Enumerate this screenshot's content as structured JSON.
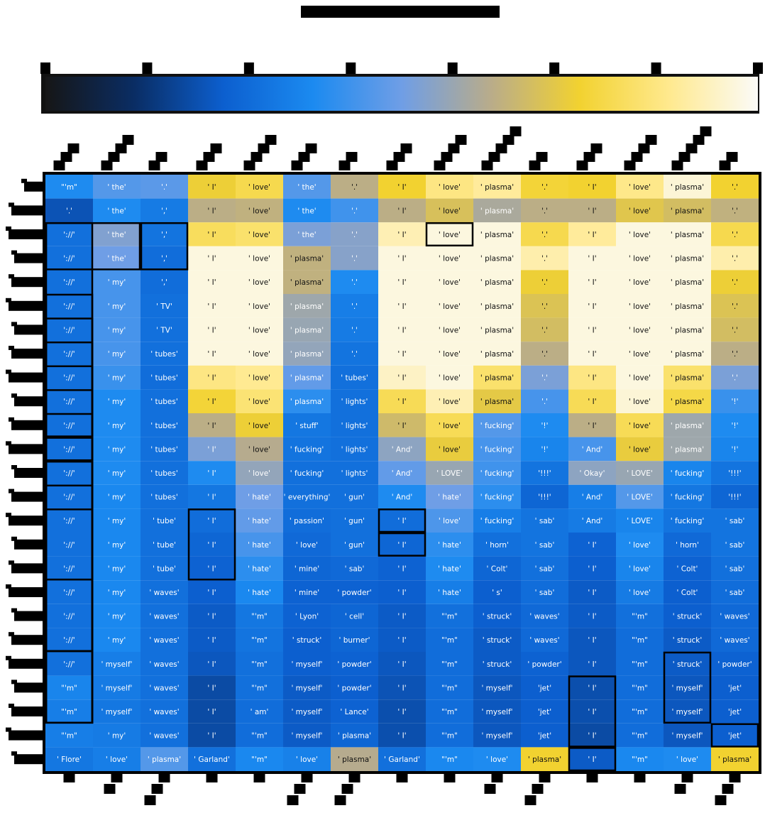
{
  "chart_data": {
    "type": "heatmap",
    "title": "",
    "xlabel": "",
    "ylabel": "",
    "n_rows": 25,
    "n_cols": 15,
    "colorbar": {
      "colors": [
        "#161616",
        "#0a2d64",
        "#0c5fcf",
        "#1b8af0",
        "#6f9ee6",
        "#b9ac8a",
        "#f2d230",
        "#ffe98e",
        "#fbfbf8"
      ],
      "n_ticks": 8,
      "tick_labels": []
    },
    "x_tick_labels": [],
    "y_tick_labels": [],
    "rows": [
      {
        "labels": [
          "\"'m\"",
          "' the'",
          "'.'",
          "' I'",
          "' love'",
          "' the'",
          "'.'",
          "' I'",
          "' love'",
          "' plasma'",
          "'.'",
          "' I'",
          "' love'",
          "' plasma'",
          "'.'"
        ],
        "values": [
          0.38,
          0.46,
          0.47,
          0.74,
          0.79,
          0.46,
          0.63,
          0.75,
          0.86,
          0.89,
          0.76,
          0.75,
          0.87,
          0.96,
          0.75
        ]
      },
      {
        "labels": [
          "'.'",
          "' the'",
          "','",
          "' I'",
          "' love'",
          "' the'",
          "'.'",
          "' I'",
          "' love'",
          "' plasma'",
          "'.'",
          "' I'",
          "' love'",
          "' plasma'",
          "'.'"
        ],
        "values": [
          0.22,
          0.38,
          0.33,
          0.63,
          0.64,
          0.38,
          0.43,
          0.63,
          0.69,
          0.6,
          0.63,
          0.63,
          0.71,
          0.68,
          0.64
        ]
      },
      {
        "labels": [
          "'://'",
          "' the'",
          "','",
          "' I'",
          "' love'",
          "' the'",
          "'.'",
          "' I'",
          "' love'",
          "' plasma'",
          "'.'",
          "' I'",
          "' love'",
          "' plasma'",
          "'.'"
        ],
        "values": [
          0.3,
          0.53,
          0.31,
          0.81,
          0.83,
          0.52,
          0.54,
          0.92,
          0.97,
          0.97,
          0.79,
          0.89,
          0.97,
          0.97,
          0.79
        ]
      },
      {
        "labels": [
          "'://'",
          "' the'",
          "','",
          "' I'",
          "' love'",
          "' plasma'",
          "'.'",
          "' I'",
          "' love'",
          "' plasma'",
          "'.'",
          "' I'",
          "' love'",
          "' plasma'",
          "'.'"
        ],
        "values": [
          0.3,
          0.5,
          0.29,
          0.97,
          0.97,
          0.64,
          0.54,
          0.97,
          0.97,
          0.97,
          0.91,
          0.97,
          0.97,
          0.97,
          0.91
        ]
      },
      {
        "labels": [
          "'://'",
          "' my'",
          "','",
          "' I'",
          "' love'",
          "' plasma'",
          "'.'",
          "' I'",
          "' love'",
          "' plasma'",
          "'.'",
          "' I'",
          "' love'",
          "' plasma'",
          "'.'"
        ],
        "values": [
          0.3,
          0.44,
          0.29,
          0.97,
          0.97,
          0.64,
          0.38,
          0.97,
          0.97,
          0.97,
          0.74,
          0.97,
          0.97,
          0.97,
          0.74
        ]
      },
      {
        "labels": [
          "'://'",
          "' my'",
          "' TV'",
          "' I'",
          "' love'",
          "' plasma'",
          "'.'",
          "' I'",
          "' love'",
          "' plasma'",
          "'.'",
          "' I'",
          "' love'",
          "' plasma'",
          "'.'"
        ],
        "values": [
          0.3,
          0.44,
          0.3,
          0.97,
          0.97,
          0.58,
          0.34,
          0.97,
          0.97,
          0.97,
          0.7,
          0.97,
          0.97,
          0.97,
          0.7
        ]
      },
      {
        "labels": [
          "'://'",
          "' my'",
          "' TV'",
          "' I'",
          "' love'",
          "' plasma'",
          "'.'",
          "' I'",
          "' love'",
          "' plasma'",
          "'.'",
          "' I'",
          "' love'",
          "' plasma'",
          "'.'"
        ],
        "values": [
          0.3,
          0.44,
          0.3,
          0.97,
          0.97,
          0.57,
          0.33,
          0.97,
          0.97,
          0.97,
          0.68,
          0.97,
          0.97,
          0.97,
          0.68
        ]
      },
      {
        "labels": [
          "'://'",
          "' my'",
          "' tubes'",
          "' I'",
          "' love'",
          "' plasma'",
          "'.'",
          "' I'",
          "' love'",
          "' plasma'",
          "'.'",
          "' I'",
          "' love'",
          "' plasma'",
          "'.'"
        ],
        "values": [
          0.3,
          0.44,
          0.3,
          0.97,
          0.97,
          0.56,
          0.31,
          0.97,
          0.97,
          0.97,
          0.63,
          0.97,
          0.97,
          0.97,
          0.63
        ]
      },
      {
        "labels": [
          "'://'",
          "' my'",
          "' tubes'",
          "' I'",
          "' love'",
          "' plasma'",
          "' tubes'",
          "' I'",
          "' love'",
          "' plasma'",
          "'.'",
          "' I'",
          "' love'",
          "' plasma'",
          "'.'"
        ],
        "values": [
          0.3,
          0.42,
          0.29,
          0.86,
          0.88,
          0.48,
          0.3,
          0.94,
          0.97,
          0.83,
          0.52,
          0.86,
          0.97,
          0.83,
          0.52
        ]
      },
      {
        "labels": [
          "'://'",
          "' my'",
          "' tubes'",
          "' I'",
          "' love'",
          "' plasma'",
          "' lights'",
          "' I'",
          "' love'",
          "' plasma'",
          "'.'",
          "' I'",
          "' love'",
          "' plasma'",
          "'!'"
        ],
        "values": [
          0.3,
          0.38,
          0.3,
          0.76,
          0.84,
          0.4,
          0.3,
          0.8,
          0.92,
          0.72,
          0.44,
          0.8,
          0.96,
          0.78,
          0.42
        ]
      },
      {
        "labels": [
          "'://'",
          "' my'",
          "' tubes'",
          "' I'",
          "' love'",
          "' stuff'",
          "' lights'",
          "' I'",
          "' love'",
          "' fucking'",
          "'!'",
          "' I'",
          "' love'",
          "' plasma'",
          "'!'"
        ],
        "values": [
          0.3,
          0.38,
          0.3,
          0.63,
          0.74,
          0.32,
          0.3,
          0.67,
          0.8,
          0.46,
          0.38,
          0.63,
          0.8,
          0.58,
          0.38
        ]
      },
      {
        "labels": [
          "'://'",
          "' my'",
          "' tubes'",
          "' I'",
          "' love'",
          "' fucking'",
          "' lights'",
          "' And'",
          "' love'",
          "' fucking'",
          "'!'",
          "' And'",
          "' love'",
          "' plasma'",
          "'!'"
        ],
        "values": [
          0.3,
          0.38,
          0.3,
          0.52,
          0.62,
          0.31,
          0.3,
          0.55,
          0.73,
          0.44,
          0.36,
          0.44,
          0.73,
          0.58,
          0.36
        ]
      },
      {
        "labels": [
          "'://'",
          "' my'",
          "' tubes'",
          "' I'",
          "' love'",
          "' fucking'",
          "' lights'",
          "' And'",
          "' LOVE'",
          "' fucking'",
          "'!!!'",
          "' Okay'",
          "' LOVE'",
          "' fucking'",
          "'!!!'"
        ],
        "values": [
          0.3,
          0.38,
          0.3,
          0.38,
          0.56,
          0.3,
          0.3,
          0.48,
          0.57,
          0.43,
          0.31,
          0.55,
          0.57,
          0.36,
          0.31
        ]
      },
      {
        "labels": [
          "'://'",
          "' my'",
          "' tubes'",
          "' I'",
          "' hate'",
          "' everything'",
          "' gun'",
          "' And'",
          "' hate'",
          "' fucking'",
          "'!!!'",
          "' And'",
          "' LOVE'",
          "' fucking'",
          "'!!!'"
        ],
        "values": [
          0.3,
          0.37,
          0.3,
          0.32,
          0.5,
          0.3,
          0.3,
          0.38,
          0.5,
          0.4,
          0.27,
          0.34,
          0.46,
          0.32,
          0.27
        ]
      },
      {
        "labels": [
          "'://'",
          "' my'",
          "' tube'",
          "' I'",
          "' hate'",
          "' passion'",
          "' gun'",
          "' I'",
          "' love'",
          "' fucking'",
          "' sab'",
          "' And'",
          "' LOVE'",
          "' fucking'",
          "' sab'"
        ],
        "values": [
          0.3,
          0.37,
          0.3,
          0.29,
          0.48,
          0.29,
          0.3,
          0.29,
          0.45,
          0.34,
          0.31,
          0.33,
          0.36,
          0.31,
          0.31
        ]
      },
      {
        "labels": [
          "'://'",
          "' my'",
          "' tube'",
          "' I'",
          "' hate'",
          "' love'",
          "' gun'",
          "' I'",
          "' hate'",
          "' horn'",
          "' sab'",
          "' I'",
          "' love'",
          "' horn'",
          "' sab'"
        ],
        "values": [
          0.3,
          0.37,
          0.3,
          0.27,
          0.44,
          0.28,
          0.3,
          0.27,
          0.4,
          0.3,
          0.31,
          0.26,
          0.38,
          0.28,
          0.31
        ]
      },
      {
        "labels": [
          "'://'",
          "' my'",
          "' tube'",
          "' I'",
          "' hate'",
          "' mine'",
          "' sab'",
          "' I'",
          "' hate'",
          "' Colt'",
          "' sab'",
          "' I'",
          "' love'",
          "' Colt'",
          "' sab'"
        ],
        "values": [
          0.3,
          0.37,
          0.3,
          0.26,
          0.4,
          0.27,
          0.28,
          0.26,
          0.38,
          0.27,
          0.3,
          0.25,
          0.36,
          0.26,
          0.3
        ]
      },
      {
        "labels": [
          "'://'",
          "' my'",
          "' waves'",
          "' I'",
          "' hate'",
          "' mine'",
          "' powder'",
          "' I'",
          "' hate'",
          "' s'",
          "' sab'",
          "' I'",
          "' love'",
          "' Colt'",
          "' sab'"
        ],
        "values": [
          0.3,
          0.37,
          0.3,
          0.25,
          0.37,
          0.26,
          0.26,
          0.25,
          0.34,
          0.25,
          0.29,
          0.24,
          0.33,
          0.25,
          0.29
        ]
      },
      {
        "labels": [
          "'://'",
          "' my'",
          "' waves'",
          "' I'",
          "\"'m\"",
          "' Lyon'",
          "' cell'",
          "' I'",
          "\"'m\"",
          "' struck'",
          "' waves'",
          "' I'",
          "\"'m\"",
          "' struck'",
          "' waves'"
        ],
        "values": [
          0.3,
          0.37,
          0.3,
          0.24,
          0.32,
          0.26,
          0.27,
          0.24,
          0.3,
          0.25,
          0.28,
          0.24,
          0.3,
          0.25,
          0.28
        ]
      },
      {
        "labels": [
          "'://'",
          "' my'",
          "' waves'",
          "' I'",
          "\"'m\"",
          "' struck'",
          "' burner'",
          "' I'",
          "\"'m\"",
          "' struck'",
          "' waves'",
          "' I'",
          "\"'m\"",
          "' struck'",
          "' waves'"
        ],
        "values": [
          0.3,
          0.37,
          0.3,
          0.24,
          0.31,
          0.25,
          0.27,
          0.24,
          0.29,
          0.24,
          0.28,
          0.23,
          0.29,
          0.24,
          0.28
        ]
      },
      {
        "labels": [
          "'://'",
          "' myself'",
          "' waves'",
          "' I'",
          "\"'m\"",
          "' myself'",
          "' powder'",
          "' I'",
          "\"'m\"",
          "' struck'",
          "' powder'",
          "' I'",
          "\"'m\"",
          "' struck'",
          "' powder'"
        ],
        "values": [
          0.3,
          0.34,
          0.3,
          0.23,
          0.3,
          0.25,
          0.26,
          0.23,
          0.29,
          0.24,
          0.26,
          0.23,
          0.29,
          0.24,
          0.26
        ]
      },
      {
        "labels": [
          "\"'m\"",
          "' myself'",
          "' waves'",
          "' I'",
          "\"'m\"",
          "' myself'",
          "' powder'",
          "' I'",
          "\"'m\"",
          "' myself'",
          "'jet'",
          "' I'",
          "\"'m\"",
          "' myself'",
          "'jet'"
        ],
        "values": [
          0.36,
          0.33,
          0.3,
          0.2,
          0.3,
          0.24,
          0.25,
          0.22,
          0.29,
          0.23,
          0.25,
          0.21,
          0.29,
          0.23,
          0.25
        ]
      },
      {
        "labels": [
          "\"'m\"",
          "' myself'",
          "' waves'",
          "' I'",
          "' am'",
          "' myself'",
          "' Lance'",
          "' I'",
          "\"'m\"",
          "' myself'",
          "'jet'",
          "' I'",
          "\"'m\"",
          "' myself'",
          "'jet'"
        ],
        "values": [
          0.34,
          0.32,
          0.3,
          0.2,
          0.29,
          0.24,
          0.26,
          0.21,
          0.29,
          0.23,
          0.25,
          0.21,
          0.29,
          0.23,
          0.25
        ]
      },
      {
        "labels": [
          "\"'m\"",
          "' my'",
          "' waves'",
          "' I'",
          "\"'m\"",
          "' myself'",
          "' plasma'",
          "' I'",
          "\"'m\"",
          "' myself'",
          "'jet'",
          "' I'",
          "\"'m\"",
          "' myself'",
          "'jet'"
        ],
        "values": [
          0.34,
          0.33,
          0.3,
          0.2,
          0.29,
          0.24,
          0.27,
          0.21,
          0.29,
          0.23,
          0.25,
          0.2,
          0.29,
          0.23,
          0.25
        ]
      },
      {
        "labels": [
          "' Flore'",
          "' love'",
          "' plasma'",
          "' Garland'",
          "\"'m\"",
          "' love'",
          "' plasma'",
          "' Garland'",
          "\"'m\"",
          "' love'",
          "' plasma'",
          "' I'",
          "\"'m\"",
          "' love'",
          "' plasma'"
        ],
        "values": [
          0.32,
          0.34,
          0.46,
          0.3,
          0.37,
          0.35,
          0.62,
          0.3,
          0.37,
          0.38,
          0.75,
          0.24,
          0.37,
          0.38,
          0.75
        ]
      }
    ],
    "outlines": [
      [
        1,
        3,
        2,
        2
      ],
      [
        1,
        3,
        9,
        1
      ],
      [
        3,
        3,
        2,
        1
      ],
      [
        1,
        6,
        7,
        1
      ],
      [
        1,
        7,
        11,
        1
      ],
      [
        1,
        8,
        10,
        1
      ],
      [
        1,
        9,
        12,
        1
      ],
      [
        1,
        10,
        11,
        1
      ],
      [
        1,
        11,
        10,
        1
      ],
      [
        1,
        12,
        12,
        1
      ],
      [
        1,
        13,
        11,
        1
      ],
      [
        1,
        14,
        10,
        1
      ],
      [
        1,
        15,
        9,
        1
      ],
      [
        4,
        15,
        3,
        1
      ],
      [
        8,
        15,
        1,
        1
      ],
      [
        8,
        16,
        1,
        1
      ],
      [
        9,
        3,
        1,
        1
      ],
      [
        12,
        22,
        3,
        1
      ],
      [
        15,
        24,
        1,
        1
      ],
      [
        12,
        25,
        1,
        1
      ],
      [
        14,
        21,
        3,
        1
      ]
    ]
  }
}
